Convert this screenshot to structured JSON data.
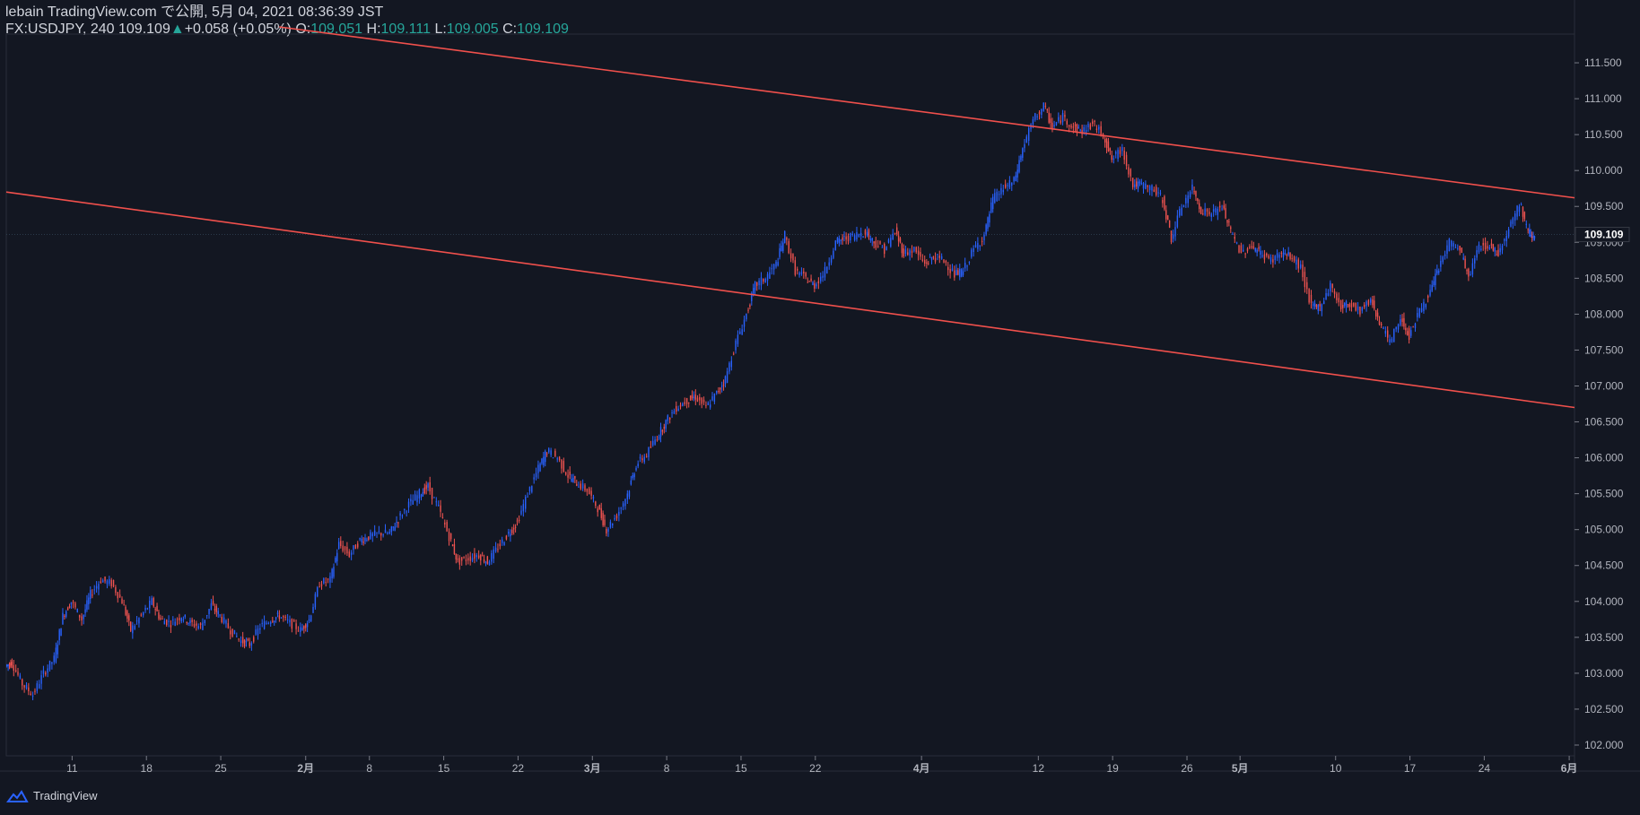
{
  "header": {
    "line1": "lebain TradingView.com で公開, 5月 04, 2021 08:36:39 JST",
    "symbol": "FX:USDJPY, 240",
    "last": "109.109",
    "change_arrow": "▲",
    "change": "+0.058 (+0.05%)",
    "o_label": "O:",
    "o": "109.051",
    "h_label": "H:",
    "h": "109.111",
    "l_label": "L:",
    "l": "109.005",
    "c_label": "C:",
    "c": "109.109"
  },
  "footer": {
    "brand": "TradingView"
  },
  "colors": {
    "background": "#131722",
    "up": "#2962ff",
    "down": "#ef5350",
    "trendline": "#f0504c",
    "accent": "#26a69a"
  },
  "chart_data": {
    "type": "candlestick",
    "ylim": [
      101.85,
      111.9
    ],
    "y_ticks": [
      "111.500",
      "111.000",
      "110.500",
      "110.000",
      "109.500",
      "109.000",
      "108.500",
      "108.000",
      "107.500",
      "107.000",
      "106.500",
      "106.000",
      "105.500",
      "105.000",
      "104.500",
      "104.000",
      "103.500",
      "103.000",
      "102.500",
      "102.000"
    ],
    "last_price_label": "109.109",
    "x_ticks": [
      "11",
      "18",
      "25",
      "2月",
      "8",
      "15",
      "22",
      "3月",
      "8",
      "15",
      "22",
      "4月",
      "12",
      "19",
      "26",
      "5月",
      "10",
      "17",
      "24",
      "6月"
    ],
    "x_tick_days": [
      11,
      18,
      25,
      33,
      39,
      46,
      53,
      60,
      67,
      74,
      81,
      91,
      102,
      109,
      116,
      121,
      130,
      137,
      144,
      152
    ],
    "x_start_day": 4.8,
    "x_end_day": 152.5,
    "trendlines": [
      {
        "points": [
          [
            30.5,
            112.0
          ],
          [
            152.5,
            109.62
          ]
        ]
      },
      {
        "points": [
          [
            4.8,
            109.7
          ],
          [
            152.5,
            106.7
          ]
        ]
      }
    ],
    "close_path": [
      [
        4.8,
        103.1
      ],
      [
        5.4,
        103.15
      ],
      [
        6.4,
        102.85
      ],
      [
        7.4,
        102.7
      ],
      [
        8.4,
        103.0
      ],
      [
        9.4,
        103.2
      ],
      [
        10.2,
        103.8
      ],
      [
        11,
        104.0
      ],
      [
        12,
        103.75
      ],
      [
        12.8,
        104.1
      ],
      [
        13.8,
        104.3
      ],
      [
        14.8,
        104.25
      ],
      [
        15.8,
        104.0
      ],
      [
        16.6,
        103.6
      ],
      [
        17.6,
        103.8
      ],
      [
        18.6,
        104.0
      ],
      [
        19.4,
        103.75
      ],
      [
        20.4,
        103.7
      ],
      [
        21.4,
        103.8
      ],
      [
        22.2,
        103.7
      ],
      [
        23.2,
        103.65
      ],
      [
        24.2,
        103.95
      ],
      [
        25,
        103.8
      ],
      [
        26,
        103.6
      ],
      [
        27,
        103.45
      ],
      [
        27.8,
        103.4
      ],
      [
        28.8,
        103.65
      ],
      [
        29.8,
        103.75
      ],
      [
        30.6,
        103.8
      ],
      [
        31.6,
        103.7
      ],
      [
        32.6,
        103.6
      ],
      [
        33.4,
        103.75
      ],
      [
        34.4,
        104.25
      ],
      [
        35.4,
        104.3
      ],
      [
        36.2,
        104.8
      ],
      [
        37.2,
        104.65
      ],
      [
        38.2,
        104.85
      ],
      [
        39,
        104.9
      ],
      [
        40,
        104.95
      ],
      [
        41,
        104.95
      ],
      [
        41.8,
        105.15
      ],
      [
        42.8,
        105.35
      ],
      [
        43.8,
        105.5
      ],
      [
        44.6,
        105.6
      ],
      [
        45.6,
        105.3
      ],
      [
        46.6,
        104.9
      ],
      [
        47.4,
        104.55
      ],
      [
        48.4,
        104.6
      ],
      [
        49.4,
        104.65
      ],
      [
        50.2,
        104.55
      ],
      [
        51.2,
        104.75
      ],
      [
        52.2,
        104.95
      ],
      [
        53,
        105.1
      ],
      [
        54,
        105.5
      ],
      [
        55,
        105.85
      ],
      [
        55.8,
        106.1
      ],
      [
        56.8,
        106.0
      ],
      [
        57.8,
        105.75
      ],
      [
        58.6,
        105.65
      ],
      [
        59.6,
        105.55
      ],
      [
        60.6,
        105.3
      ],
      [
        61.4,
        105.0
      ],
      [
        62.4,
        105.2
      ],
      [
        63.4,
        105.5
      ],
      [
        64.2,
        105.9
      ],
      [
        65.2,
        106.05
      ],
      [
        66.2,
        106.3
      ],
      [
        67,
        106.5
      ],
      [
        68,
        106.7
      ],
      [
        69,
        106.8
      ],
      [
        69.8,
        106.85
      ],
      [
        70.8,
        106.7
      ],
      [
        71.8,
        106.9
      ],
      [
        72.6,
        107.1
      ],
      [
        73.6,
        107.6
      ],
      [
        74.6,
        108.0
      ],
      [
        75.4,
        108.4
      ],
      [
        76.4,
        108.5
      ],
      [
        77.4,
        108.7
      ],
      [
        78.2,
        109.1
      ],
      [
        79.2,
        108.6
      ],
      [
        80.2,
        108.5
      ],
      [
        81,
        108.4
      ],
      [
        82,
        108.6
      ],
      [
        83,
        109.0
      ],
      [
        83.8,
        109.05
      ],
      [
        84.8,
        109.1
      ],
      [
        85.8,
        109.15
      ],
      [
        86.6,
        109.0
      ],
      [
        87.6,
        108.9
      ],
      [
        88.6,
        109.15
      ],
      [
        89.4,
        108.85
      ],
      [
        90.4,
        108.9
      ],
      [
        91.4,
        108.7
      ],
      [
        92.2,
        108.8
      ],
      [
        93.2,
        108.75
      ],
      [
        94.2,
        108.55
      ],
      [
        95,
        108.6
      ],
      [
        96,
        108.9
      ],
      [
        97,
        109.1
      ],
      [
        97.8,
        109.6
      ],
      [
        98.8,
        109.75
      ],
      [
        99.8,
        109.85
      ],
      [
        100.6,
        110.3
      ],
      [
        101.6,
        110.7
      ],
      [
        102.6,
        110.9
      ],
      [
        103.4,
        110.6
      ],
      [
        104.4,
        110.75
      ],
      [
        105.4,
        110.6
      ],
      [
        106.2,
        110.55
      ],
      [
        107.2,
        110.65
      ],
      [
        108.2,
        110.5
      ],
      [
        109,
        110.15
      ],
      [
        110,
        110.3
      ],
      [
        111,
        109.8
      ],
      [
        111.8,
        109.8
      ],
      [
        112.8,
        109.75
      ],
      [
        113.8,
        109.6
      ],
      [
        114.6,
        109.05
      ],
      [
        115.6,
        109.5
      ],
      [
        116.6,
        109.75
      ],
      [
        117.4,
        109.45
      ],
      [
        118.4,
        109.4
      ],
      [
        119.4,
        109.5
      ],
      [
        120.2,
        109.15
      ],
      [
        121.2,
        108.85
      ],
      [
        122.2,
        108.95
      ],
      [
        123,
        108.85
      ],
      [
        124,
        108.75
      ],
      [
        125,
        108.85
      ],
      [
        125.8,
        108.8
      ],
      [
        126.8,
        108.65
      ],
      [
        127.8,
        108.1
      ],
      [
        128.6,
        108.1
      ],
      [
        129.6,
        108.4
      ],
      [
        130.6,
        108.1
      ],
      [
        131.4,
        108.15
      ],
      [
        132.4,
        108.05
      ],
      [
        133.4,
        108.2
      ],
      [
        134.2,
        107.9
      ],
      [
        135.2,
        107.6
      ],
      [
        136.2,
        107.95
      ],
      [
        137,
        107.7
      ],
      [
        138,
        108.05
      ],
      [
        139,
        108.3
      ],
      [
        139.8,
        108.65
      ],
      [
        140.8,
        109.0
      ],
      [
        141.8,
        108.9
      ],
      [
        142.6,
        108.5
      ],
      [
        143.6,
        108.95
      ],
      [
        144.6,
        108.95
      ],
      [
        145.4,
        108.85
      ],
      [
        146.4,
        109.2
      ],
      [
        147.4,
        109.55
      ],
      [
        148.2,
        109.15
      ],
      [
        148.8,
        109.1
      ]
    ]
  }
}
